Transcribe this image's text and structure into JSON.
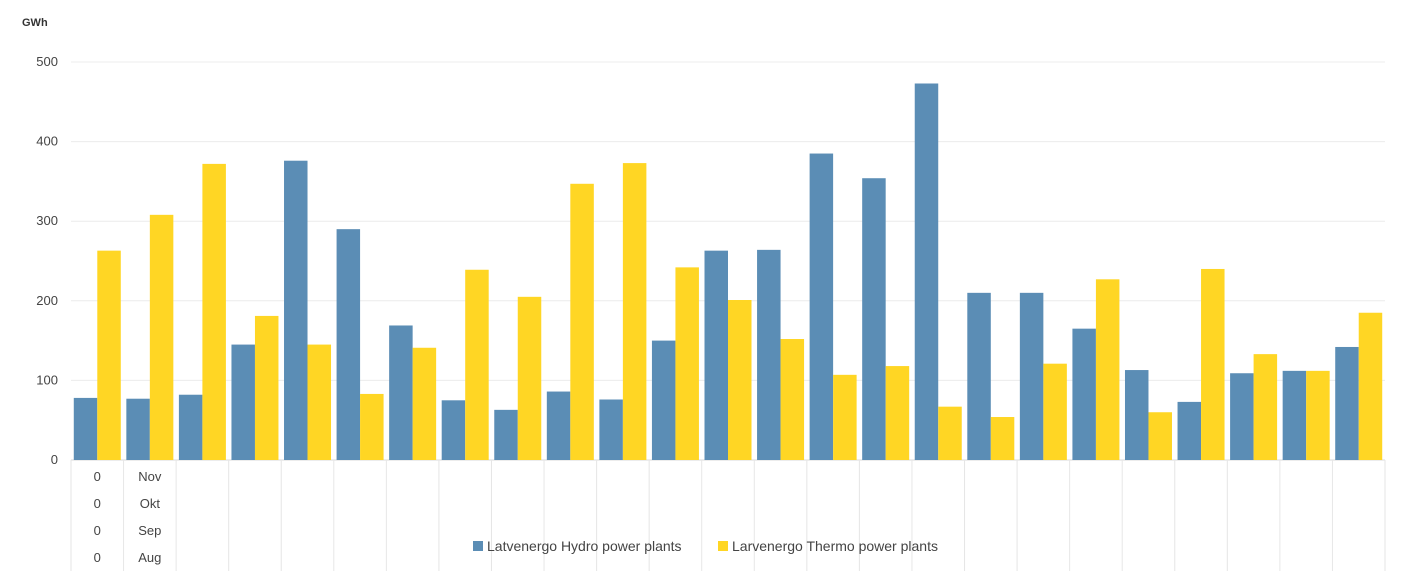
{
  "chart_data": {
    "type": "bar",
    "unit_label": "GWh",
    "ylim": [
      0,
      500
    ],
    "yticks": [
      0,
      100,
      200,
      300,
      400,
      500
    ],
    "grid": true,
    "legend_position": "bottom-center",
    "category_label_rows": [
      [
        "0",
        "Nov"
      ],
      [
        "0",
        "Okt"
      ],
      [
        "0",
        "Sep"
      ],
      [
        "0",
        "Aug"
      ]
    ],
    "series": [
      {
        "name": "Latvenergo Hydro power plants",
        "color": "#5b8db5",
        "values": [
          78,
          77,
          82,
          145,
          376,
          290,
          169,
          75,
          63,
          86,
          76,
          150,
          263,
          264,
          385,
          354,
          473,
          210,
          210,
          165,
          113,
          73,
          109,
          112,
          142
        ]
      },
      {
        "name": "Larvenergo Thermo power plants",
        "color": "#ffd624",
        "values": [
          263,
          308,
          372,
          181,
          145,
          83,
          141,
          239,
          205,
          347,
          373,
          242,
          201,
          152,
          107,
          118,
          67,
          54,
          121,
          227,
          60,
          240,
          133,
          112,
          185
        ]
      }
    ]
  }
}
